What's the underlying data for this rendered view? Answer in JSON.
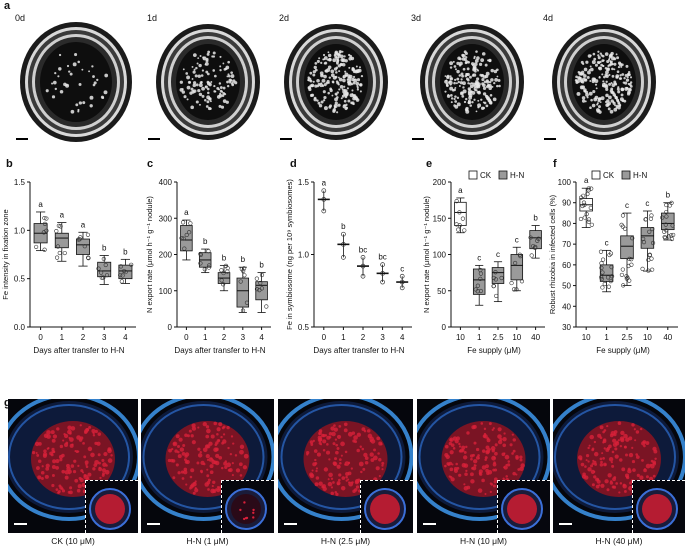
{
  "panel_labels": {
    "a": "a",
    "b": "b",
    "c": "c",
    "d": "d",
    "e": "e",
    "f": "f",
    "g": "g"
  },
  "panel_a": {
    "day_labels": [
      "0d",
      "1d",
      "2d",
      "3d",
      "4d"
    ]
  },
  "panel_g": {
    "captions": [
      "CK (10 μM)",
      "H-N (1 μM)",
      "H-N (2.5 μM)",
      "H-N (10 μM)",
      "H-N (40 μM)"
    ]
  },
  "colors": {
    "gray_box": "#9a9a9a",
    "white_box": "#ffffff",
    "root_blue": "#3b8fe0",
    "bacteroid_red": "#d8203a"
  },
  "chart_data": [
    {
      "id": "b",
      "type": "box",
      "categories": [
        "0",
        "1",
        "2",
        "3",
        "4"
      ],
      "xlabel": "Days after transfer to H-N",
      "ylabel": "Fe intensity in fixation zone",
      "ylim": [
        0.0,
        1.5
      ],
      "yticks": [
        "0.0",
        "0.5",
        "1.0",
        "1.5"
      ],
      "ytick_values": [
        0,
        0.5,
        1.0,
        1.5
      ],
      "boxes": [
        {
          "min": 0.79,
          "q1": 0.87,
          "median": 0.97,
          "q3": 1.07,
          "max": 1.19,
          "fill": "gray"
        },
        {
          "min": 0.68,
          "q1": 0.82,
          "median": 0.92,
          "q3": 0.97,
          "max": 1.08,
          "fill": "gray"
        },
        {
          "min": 0.63,
          "q1": 0.75,
          "median": 0.85,
          "q3": 0.91,
          "max": 0.98,
          "fill": "gray"
        },
        {
          "min": 0.44,
          "q1": 0.52,
          "median": 0.58,
          "q3": 0.67,
          "max": 0.74,
          "fill": "gray"
        },
        {
          "min": 0.45,
          "q1": 0.5,
          "median": 0.58,
          "q3": 0.64,
          "max": 0.7,
          "fill": "gray"
        }
      ],
      "letters": [
        "a",
        "a",
        "a",
        "b",
        "b"
      ]
    },
    {
      "id": "c",
      "type": "box",
      "categories": [
        "0",
        "1",
        "2",
        "3",
        "4"
      ],
      "xlabel": "Days after transfer to H-N",
      "ylabel": "N export rate (μmol h⁻¹ g⁻¹ nodule)",
      "ylim": [
        0,
        400
      ],
      "yticks": [
        "0",
        "100",
        "200",
        "300",
        "400"
      ],
      "ytick_values": [
        0,
        100,
        200,
        300,
        400
      ],
      "boxes": [
        {
          "min": 185,
          "q1": 210,
          "median": 240,
          "q3": 280,
          "max": 295,
          "fill": "gray"
        },
        {
          "min": 150,
          "q1": 165,
          "median": 185,
          "q3": 205,
          "max": 215,
          "fill": "gray"
        },
        {
          "min": 100,
          "q1": 120,
          "median": 135,
          "q3": 150,
          "max": 170,
          "fill": "gray"
        },
        {
          "min": 40,
          "q1": 55,
          "median": 100,
          "q3": 135,
          "max": 165,
          "fill": "gray"
        },
        {
          "min": 40,
          "q1": 75,
          "median": 115,
          "q3": 125,
          "max": 150,
          "fill": "gray"
        }
      ],
      "letters": [
        "a",
        "b",
        "b",
        "b",
        "b"
      ]
    },
    {
      "id": "d",
      "type": "dot-median",
      "categories": [
        "0",
        "1",
        "2",
        "3",
        "4"
      ],
      "xlabel": "Days after transfer to H-N",
      "ylabel": "Fe in symbiosome (ng per 10⁹ symbiosomes)",
      "ylim": [
        0.5,
        1.5
      ],
      "yticks": [
        "0.5",
        "1.0",
        "1.5"
      ],
      "ytick_values": [
        0.5,
        1.0,
        1.5
      ],
      "points": [
        [
          1.3,
          1.38,
          1.44
        ],
        [
          0.98,
          1.07,
          1.14
        ],
        [
          0.85,
          0.92,
          0.98
        ],
        [
          0.81,
          0.87,
          0.93
        ],
        [
          0.77,
          0.81,
          0.85
        ]
      ],
      "medians": [
        1.38,
        1.07,
        0.92,
        0.87,
        0.81
      ],
      "letters": [
        "a",
        "b",
        "bc",
        "bc",
        "c"
      ]
    },
    {
      "id": "e",
      "type": "box",
      "categories": [
        "10",
        "1",
        "2.5",
        "10",
        "40"
      ],
      "xlabel": "Fe supply (μM)",
      "ylabel": "N export rate (μmol h⁻¹ g⁻¹ nodule)",
      "ylim": [
        0,
        200
      ],
      "yticks": [
        "0",
        "50",
        "100",
        "150",
        "200"
      ],
      "ytick_values": [
        0,
        50,
        100,
        150,
        200
      ],
      "legend": [
        "CK",
        "H-N"
      ],
      "boxes": [
        {
          "min": 130,
          "q1": 140,
          "median": 158,
          "q3": 172,
          "max": 178,
          "fill": "white"
        },
        {
          "min": 30,
          "q1": 45,
          "median": 65,
          "q3": 80,
          "max": 85,
          "fill": "gray"
        },
        {
          "min": 35,
          "q1": 60,
          "median": 75,
          "q3": 82,
          "max": 90,
          "fill": "gray"
        },
        {
          "min": 50,
          "q1": 65,
          "median": 85,
          "q3": 100,
          "max": 110,
          "fill": "gray"
        },
        {
          "min": 95,
          "q1": 108,
          "median": 123,
          "q3": 133,
          "max": 140,
          "fill": "gray"
        }
      ],
      "letters": [
        "a",
        "c",
        "c",
        "c",
        "b"
      ]
    },
    {
      "id": "f",
      "type": "box",
      "categories": [
        "10",
        "1",
        "2.5",
        "10",
        "40"
      ],
      "xlabel": "Fe supply (μM)",
      "ylabel": "Robust rhizobia in infected cells (%)",
      "ylim": [
        30,
        100
      ],
      "yticks": [
        "30",
        "40",
        "50",
        "60",
        "70",
        "80",
        "90",
        "100"
      ],
      "ytick_values": [
        30,
        40,
        50,
        60,
        70,
        80,
        90,
        100
      ],
      "legend": [
        "CK",
        "H-N"
      ],
      "boxes": [
        {
          "min": 78,
          "q1": 86,
          "median": 89,
          "q3": 92,
          "max": 97,
          "fill": "white"
        },
        {
          "min": 47,
          "q1": 52,
          "median": 55,
          "q3": 60,
          "max": 67,
          "fill": "gray"
        },
        {
          "min": 50,
          "q1": 63,
          "median": 69,
          "q3": 74,
          "max": 85,
          "fill": "gray"
        },
        {
          "min": 57,
          "q1": 68,
          "median": 74,
          "q3": 78,
          "max": 86,
          "fill": "gray"
        },
        {
          "min": 72,
          "q1": 77,
          "median": 80,
          "q3": 85,
          "max": 90,
          "fill": "gray"
        }
      ],
      "letters": [
        "a",
        "c",
        "c",
        "c",
        "b"
      ]
    }
  ]
}
